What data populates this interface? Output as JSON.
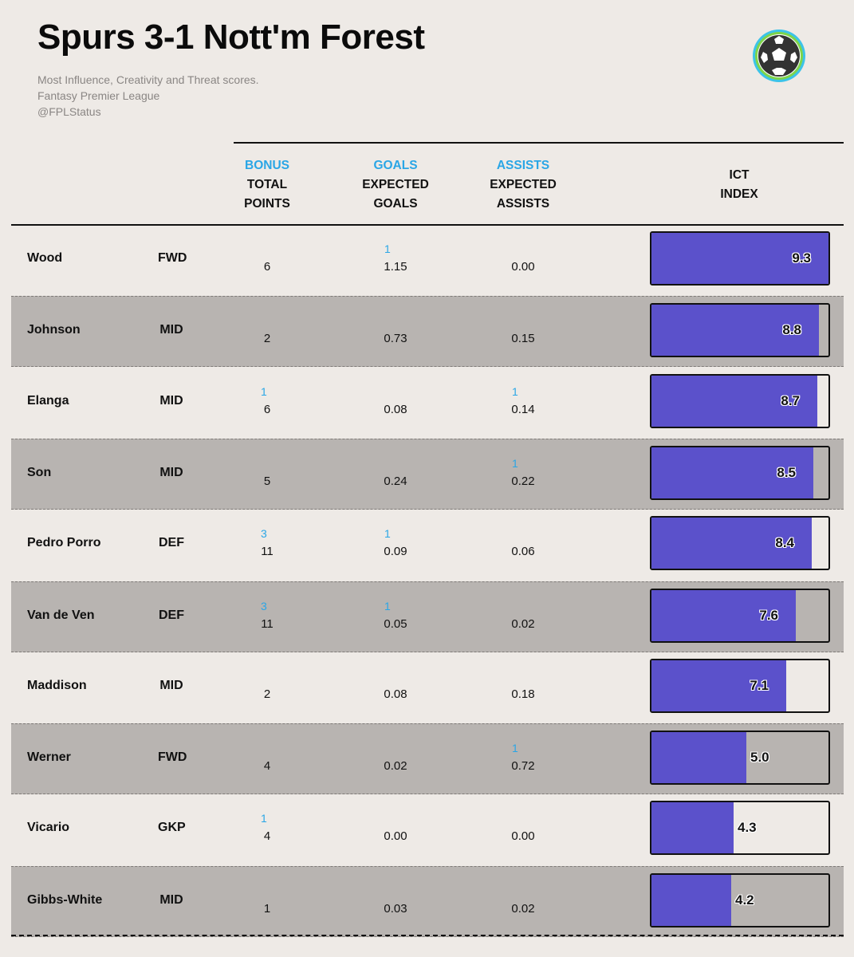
{
  "header": {
    "title": "Spurs 3-1 Nott'm Forest",
    "subtitle_lines": [
      "Most Influence, Creativity and Threat scores.",
      "Fantasy Premier League",
      "@FPLStatus"
    ],
    "logo_icon": "football-icon"
  },
  "columns": {
    "points": {
      "top": "BONUS",
      "line1": "TOTAL",
      "line2": "POINTS"
    },
    "goals": {
      "top": "GOALS",
      "line1": "EXPECTED",
      "line2": "GOALS"
    },
    "assists": {
      "top": "ASSISTS",
      "line1": "EXPECTED",
      "line2": "ASSISTS"
    },
    "ict": {
      "line1": "ICT",
      "line2": "INDEX"
    }
  },
  "colors": {
    "background": "#eeeae6",
    "shaded_row": "#b8b4b1",
    "bar": "#5b51cb",
    "accent": "#2aa6e6"
  },
  "chart_data": {
    "type": "table",
    "ict_max": 9.3,
    "rows": [
      {
        "name": "Wood",
        "pos": "FWD",
        "bonus": "",
        "points": "6",
        "goals": "1",
        "xg": "1.15",
        "assists": "",
        "xa": "0.00",
        "ict": 9.3,
        "ict_label": "9.3"
      },
      {
        "name": "Johnson",
        "pos": "MID",
        "bonus": "",
        "points": "2",
        "goals": "",
        "xg": "0.73",
        "assists": "",
        "xa": "0.15",
        "ict": 8.8,
        "ict_label": "8.8"
      },
      {
        "name": "Elanga",
        "pos": "MID",
        "bonus": "1",
        "points": "6",
        "goals": "",
        "xg": "0.08",
        "assists": "1",
        "xa": "0.14",
        "ict": 8.7,
        "ict_label": "8.7"
      },
      {
        "name": "Son",
        "pos": "MID",
        "bonus": "",
        "points": "5",
        "goals": "",
        "xg": "0.24",
        "assists": "1",
        "xa": "0.22",
        "ict": 8.5,
        "ict_label": "8.5"
      },
      {
        "name": "Pedro Porro",
        "pos": "DEF",
        "bonus": "3",
        "points": "11",
        "goals": "1",
        "xg": "0.09",
        "assists": "",
        "xa": "0.06",
        "ict": 8.4,
        "ict_label": "8.4"
      },
      {
        "name": "Van de Ven",
        "pos": "DEF",
        "bonus": "3",
        "points": "11",
        "goals": "1",
        "xg": "0.05",
        "assists": "",
        "xa": "0.02",
        "ict": 7.6,
        "ict_label": "7.6"
      },
      {
        "name": "Maddison",
        "pos": "MID",
        "bonus": "",
        "points": "2",
        "goals": "",
        "xg": "0.08",
        "assists": "",
        "xa": "0.18",
        "ict": 7.1,
        "ict_label": "7.1"
      },
      {
        "name": "Werner",
        "pos": "FWD",
        "bonus": "",
        "points": "4",
        "goals": "",
        "xg": "0.02",
        "assists": "1",
        "xa": "0.72",
        "ict": 5.0,
        "ict_label": "5.0"
      },
      {
        "name": "Vicario",
        "pos": "GKP",
        "bonus": "1",
        "points": "4",
        "goals": "",
        "xg": "0.00",
        "assists": "",
        "xa": "0.00",
        "ict": 4.3,
        "ict_label": "4.3"
      },
      {
        "name": "Gibbs-White",
        "pos": "MID",
        "bonus": "",
        "points": "1",
        "goals": "",
        "xg": "0.03",
        "assists": "",
        "xa": "0.02",
        "ict": 4.2,
        "ict_label": "4.2"
      }
    ]
  }
}
